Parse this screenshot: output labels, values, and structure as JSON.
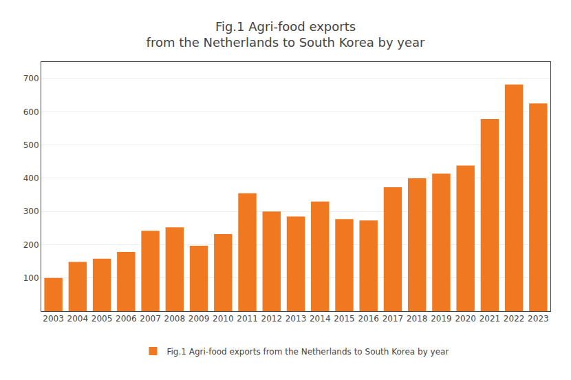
{
  "chart_data": {
    "type": "bar",
    "title": "Fig.1 Agri-food exports\nfrom the Netherlands to South Korea by year",
    "categories": [
      "2003",
      "2004",
      "2005",
      "2006",
      "2007",
      "2008",
      "2009",
      "2010",
      "2011",
      "2012",
      "2013",
      "2014",
      "2015",
      "2016",
      "2017",
      "2018",
      "2019",
      "2020",
      "2021",
      "2022",
      "2023"
    ],
    "series": [
      {
        "name": "Fig.1 Agri-food exports from the Netherlands to South Korea by year",
        "color": "#F07820",
        "values": [
          100,
          148,
          158,
          178,
          242,
          252,
          197,
          232,
          355,
          300,
          285,
          330,
          277,
          273,
          373,
          400,
          414,
          438,
          578,
          682,
          625
        ]
      }
    ],
    "ylim": [
      0,
      750
    ],
    "yticks": [
      100,
      200,
      300,
      400,
      500,
      600,
      700
    ],
    "grid": true,
    "legend": "bottom"
  }
}
